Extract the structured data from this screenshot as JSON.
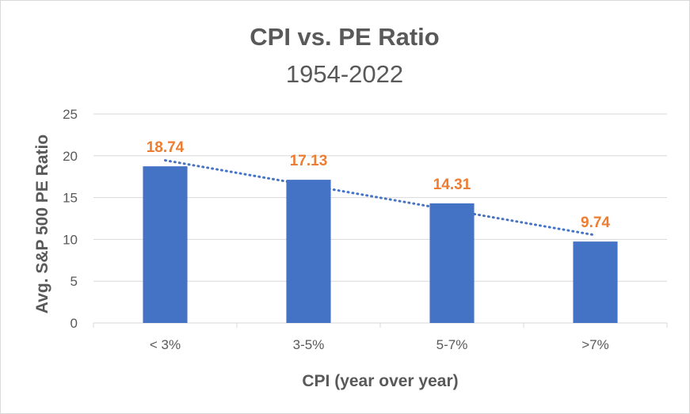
{
  "chart_data": {
    "type": "bar",
    "title": "CPI vs. PE Ratio",
    "subtitle": "1954-2022",
    "categories": [
      "< 3%",
      "3-5%",
      "5-7%",
      ">7%"
    ],
    "values": [
      18.74,
      17.13,
      14.31,
      9.74
    ],
    "data_labels": [
      "18.74",
      "17.13",
      "14.31",
      "9.74"
    ],
    "xlabel": "CPI (year over year)",
    "ylabel": "Avg. S&P 500 PE Ratio",
    "ylim": [
      0,
      25
    ],
    "yticks": [
      0,
      5,
      10,
      15,
      20,
      25
    ],
    "ytick_labels": [
      "0",
      "5",
      "10",
      "15",
      "20",
      "25"
    ],
    "grid": true,
    "trendline": {
      "type": "linear",
      "style": "dotted"
    },
    "colors": {
      "bar": "#4472C4",
      "data_label": "#ED7D31",
      "trendline": "#4472C4",
      "grid": "#d9d9d9",
      "text": "#595959"
    }
  }
}
